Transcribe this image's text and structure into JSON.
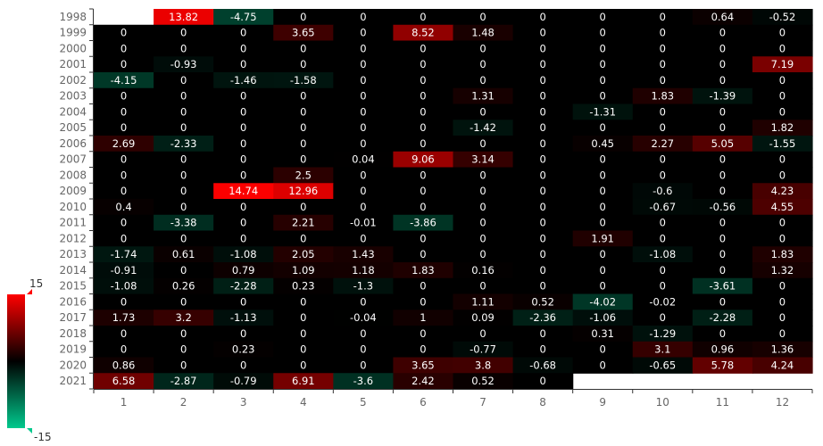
{
  "chart_data": {
    "type": "heatmap",
    "x_categories": [
      "1",
      "2",
      "3",
      "4",
      "5",
      "6",
      "7",
      "8",
      "9",
      "10",
      "11",
      "12"
    ],
    "y_categories": [
      "1998",
      "1999",
      "2000",
      "2001",
      "2002",
      "2003",
      "2004",
      "2005",
      "2006",
      "2007",
      "2008",
      "2009",
      "2010",
      "2011",
      "2012",
      "2013",
      "2014",
      "2015",
      "2016",
      "2017",
      "2018",
      "2019",
      "2020",
      "2021"
    ],
    "values": [
      [
        null,
        13.82,
        -4.75,
        0,
        0,
        0,
        0,
        0,
        0,
        0,
        0.64,
        -0.52
      ],
      [
        0,
        0,
        0,
        3.65,
        0,
        8.52,
        1.48,
        0,
        0,
        0,
        0,
        0
      ],
      [
        0,
        0,
        0,
        0,
        0,
        0,
        0,
        0,
        0,
        0,
        0,
        0
      ],
      [
        0,
        -0.93,
        0,
        0,
        0,
        0,
        0,
        0,
        0,
        0,
        0,
        7.19
      ],
      [
        -4.15,
        0,
        -1.46,
        -1.58,
        0,
        0,
        0,
        0,
        0,
        0,
        0,
        0
      ],
      [
        0,
        0,
        0,
        0,
        0,
        0,
        1.31,
        0,
        0,
        1.83,
        -1.39,
        0
      ],
      [
        0,
        0,
        0,
        0,
        0,
        0,
        0,
        0,
        -1.31,
        0,
        0,
        0
      ],
      [
        0,
        0,
        0,
        0,
        0,
        0,
        -1.42,
        0,
        0,
        0,
        0,
        1.82
      ],
      [
        2.69,
        -2.33,
        0,
        0,
        0,
        0,
        0,
        0,
        0.45,
        2.27,
        5.05,
        -1.55
      ],
      [
        0,
        0,
        0,
        0,
        0.04,
        9.06,
        3.14,
        0,
        0,
        0,
        0,
        0
      ],
      [
        0,
        0,
        0,
        2.5,
        0,
        0,
        0,
        0,
        0,
        0,
        0,
        0
      ],
      [
        0,
        0,
        14.74,
        12.96,
        0,
        0,
        0,
        0,
        0,
        -0.6,
        0,
        4.23
      ],
      [
        0.4,
        0,
        0,
        0,
        0,
        0,
        0,
        0,
        0,
        -0.67,
        -0.56,
        4.55
      ],
      [
        0,
        -3.38,
        0,
        2.21,
        -0.01,
        -3.86,
        0,
        0,
        0,
        0,
        0,
        0
      ],
      [
        0,
        0,
        0,
        0,
        0,
        0,
        0,
        0,
        1.91,
        0,
        0,
        0
      ],
      [
        -1.74,
        0.61,
        -1.08,
        2.05,
        1.43,
        0,
        0,
        0,
        0,
        -1.08,
        0,
        1.83
      ],
      [
        -0.91,
        0,
        0.79,
        1.09,
        1.18,
        1.83,
        0.16,
        0,
        0,
        0,
        0,
        1.32
      ],
      [
        -1.08,
        0.26,
        -2.28,
        0.23,
        -1.3,
        0,
        0,
        0,
        0,
        0,
        -3.61,
        0
      ],
      [
        0,
        0,
        0,
        0,
        0,
        0,
        1.11,
        0.52,
        -4.02,
        -0.02,
        0,
        0
      ],
      [
        1.73,
        3.2,
        -1.13,
        0,
        -0.04,
        1,
        0.09,
        -2.36,
        -1.06,
        0,
        -2.28,
        0
      ],
      [
        0,
        0,
        0,
        0,
        0,
        0,
        0,
        0,
        0.31,
        -1.29,
        0,
        0
      ],
      [
        0,
        0,
        0.23,
        0,
        0,
        0,
        -0.77,
        0,
        0,
        3.1,
        0.96,
        1.36
      ],
      [
        0.86,
        0,
        0,
        0,
        0,
        3.65,
        3.8,
        -0.68,
        0,
        -0.65,
        5.78,
        4.24
      ],
      [
        6.58,
        -2.87,
        -0.79,
        6.91,
        -3.6,
        2.42,
        0.52,
        0,
        null,
        null,
        null,
        null
      ]
    ],
    "visual_map": {
      "min": -15,
      "max": 15,
      "max_label": "15",
      "min_label": "-15",
      "colors": [
        "#00c98d",
        "#000000",
        "#ff0000"
      ]
    },
    "grid": false,
    "legend_placement": "bottom-left"
  }
}
